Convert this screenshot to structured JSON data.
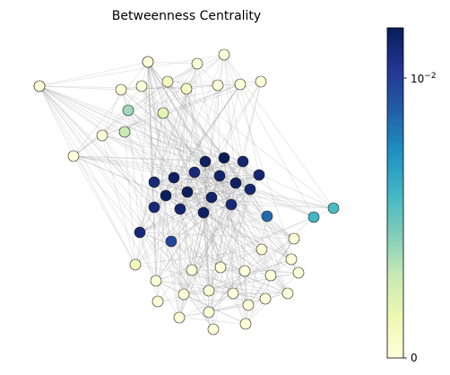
{
  "chart_data": {
    "type": "network",
    "title": "Betweenness Centrality",
    "colormap": "YlGnBu",
    "colorbar": {
      "scale": "symlog",
      "ticks": [
        {
          "value": 0,
          "label": "0"
        },
        {
          "value": 0.01,
          "label": "10^{-2}",
          "base": "10",
          "exponent": "−2"
        }
      ],
      "range": [
        0,
        0.016
      ]
    },
    "nodes": [
      {
        "id": "n1",
        "community": "upper-left",
        "betweenness": 0.0
      },
      {
        "id": "n2",
        "community": "upper-left",
        "betweenness": 0.0
      },
      {
        "id": "n3",
        "community": "upper-left",
        "betweenness": 0.0
      },
      {
        "id": "n4",
        "community": "upper-left",
        "betweenness": 0.0
      },
      {
        "id": "n5",
        "community": "upper-left",
        "betweenness": 0.0
      },
      {
        "id": "n6",
        "community": "upper-left",
        "betweenness": 0.0
      },
      {
        "id": "n7",
        "community": "upper-left",
        "betweenness": 0.0001
      },
      {
        "id": "n8",
        "community": "upper-left",
        "betweenness": 0.0001
      },
      {
        "id": "n9",
        "community": "upper-left",
        "betweenness": 0.0
      },
      {
        "id": "n10",
        "community": "upper-left",
        "betweenness": 0.0
      },
      {
        "id": "n11",
        "community": "upper-left",
        "betweenness": 0.0
      },
      {
        "id": "n12",
        "community": "upper-left",
        "betweenness": 0.0004
      },
      {
        "id": "n13",
        "community": "upper-left",
        "betweenness": 0.0002
      },
      {
        "id": "n14",
        "community": "upper-left",
        "betweenness": 0.0
      },
      {
        "id": "n15",
        "community": "upper-left",
        "betweenness": 0.0003
      },
      {
        "id": "n16",
        "community": "upper-left",
        "betweenness": 0.0
      },
      {
        "id": "n17",
        "community": "upper-left",
        "betweenness": 0.0001
      },
      {
        "id": "n18",
        "community": "center",
        "betweenness": 0.016
      },
      {
        "id": "n19",
        "community": "center",
        "betweenness": 0.014
      },
      {
        "id": "n20",
        "community": "center",
        "betweenness": 0.012
      },
      {
        "id": "n21",
        "community": "center",
        "betweenness": 0.011
      },
      {
        "id": "n22",
        "community": "center",
        "betweenness": 0.014
      },
      {
        "id": "n23",
        "community": "center",
        "betweenness": 0.013
      },
      {
        "id": "n24",
        "community": "center",
        "betweenness": 0.012
      },
      {
        "id": "n25",
        "community": "center",
        "betweenness": 0.011
      },
      {
        "id": "n26",
        "community": "center",
        "betweenness": 0.014
      },
      {
        "id": "n27",
        "community": "center",
        "betweenness": 0.015
      },
      {
        "id": "n28",
        "community": "center",
        "betweenness": 0.015
      },
      {
        "id": "n29",
        "community": "center",
        "betweenness": 0.013
      },
      {
        "id": "n30",
        "community": "center",
        "betweenness": 0.012
      },
      {
        "id": "n31",
        "community": "center",
        "betweenness": 0.011
      },
      {
        "id": "n32",
        "community": "center",
        "betweenness": 0.012
      },
      {
        "id": "n33",
        "community": "center",
        "betweenness": 0.014
      },
      {
        "id": "n34",
        "community": "center",
        "betweenness": 0.011
      },
      {
        "id": "n35",
        "community": "center",
        "betweenness": 0.011
      },
      {
        "id": "n36",
        "community": "bridge",
        "betweenness": 0.0058
      },
      {
        "id": "n37",
        "community": "bridge",
        "betweenness": 0.0032
      },
      {
        "id": "n38",
        "community": "bridge",
        "betweenness": 0.0009
      },
      {
        "id": "n39",
        "community": "bridge",
        "betweenness": 0.0008
      },
      {
        "id": "n40",
        "community": "lower-right",
        "betweenness": 0.0
      },
      {
        "id": "n41",
        "community": "lower-right",
        "betweenness": 0.0
      },
      {
        "id": "n42",
        "community": "lower-right",
        "betweenness": 0.0
      },
      {
        "id": "n43",
        "community": "lower-right",
        "betweenness": 0.0
      },
      {
        "id": "n44",
        "community": "lower-right",
        "betweenness": 0.0
      },
      {
        "id": "n45",
        "community": "lower-right",
        "betweenness": 0.0
      },
      {
        "id": "n46",
        "community": "lower-right",
        "betweenness": 0.0
      },
      {
        "id": "n47",
        "community": "lower-right",
        "betweenness": 0.0
      },
      {
        "id": "n48",
        "community": "lower-right",
        "betweenness": 0.0
      },
      {
        "id": "n49",
        "community": "lower-right",
        "betweenness": 0.0
      },
      {
        "id": "n50",
        "community": "lower-right",
        "betweenness": 0.0
      },
      {
        "id": "n51",
        "community": "lower-right",
        "betweenness": 0.0
      },
      {
        "id": "n52",
        "community": "lower-right",
        "betweenness": 0.0
      },
      {
        "id": "n53",
        "community": "lower-right",
        "betweenness": 0.0
      },
      {
        "id": "n54",
        "community": "lower-right",
        "betweenness": 0.0
      },
      {
        "id": "n55",
        "community": "lower-right",
        "betweenness": 0.0
      },
      {
        "id": "n56",
        "community": "lower-right",
        "betweenness": 0.0
      },
      {
        "id": "n57",
        "community": "lower-right",
        "betweenness": 0.0
      },
      {
        "id": "n58",
        "community": "lower-right",
        "betweenness": 0.0
      },
      {
        "id": "n59",
        "community": "lower-right",
        "betweenness": 0.0
      },
      {
        "id": "n60",
        "community": "lower-right",
        "betweenness": 0.0
      },
      {
        "id": "n61",
        "community": "lower-right",
        "betweenness": 0.0
      }
    ],
    "edges": "dense random edges within communities, sparser edges between the center community and each of the others"
  }
}
